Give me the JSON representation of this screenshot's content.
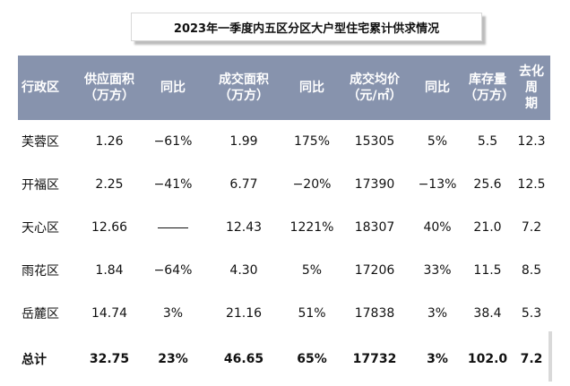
{
  "title": "2023年一季度内五区分区大户型住宅累计供求情况",
  "table": {
    "headers": [
      {
        "line1": "行政区",
        "line2": ""
      },
      {
        "line1": "供应面积",
        "line2": "（万方）"
      },
      {
        "line1": "同比",
        "line2": ""
      },
      {
        "line1": "成交面积",
        "line2": "（万方）"
      },
      {
        "line1": "同比",
        "line2": ""
      },
      {
        "line1": "成交均价",
        "line2": "（元/㎡）"
      },
      {
        "line1": "同比",
        "line2": ""
      },
      {
        "line1": "库存量",
        "line2": "（万方）"
      },
      {
        "line1": "去化周",
        "line2": "期"
      }
    ],
    "rows": [
      [
        "芙蓉区",
        "1.26",
        "−61%",
        "1.99",
        "175%",
        "15305",
        "5%",
        "5.5",
        "12.3"
      ],
      [
        "开福区",
        "2.25",
        "−41%",
        "6.77",
        "−20%",
        "17390",
        "−13%",
        "25.6",
        "12.5"
      ],
      [
        "天心区",
        "12.66",
        "",
        "12.43",
        "1221%",
        "18307",
        "40%",
        "21.0",
        "7.2"
      ],
      [
        "雨花区",
        "1.84",
        "−64%",
        "4.30",
        "5%",
        "17206",
        "33%",
        "11.5",
        "8.5"
      ],
      [
        "岳麓区",
        "14.74",
        "3%",
        "21.16",
        "51%",
        "17838",
        "3%",
        "38.4",
        "5.3"
      ]
    ],
    "total": [
      "总计",
      "32.75",
      "23%",
      "46.65",
      "65%",
      "17732",
      "3%",
      "102.0",
      "7.2"
    ]
  },
  "colors": {
    "header_bg": "#8793ad",
    "header_text": "#ffffff"
  }
}
